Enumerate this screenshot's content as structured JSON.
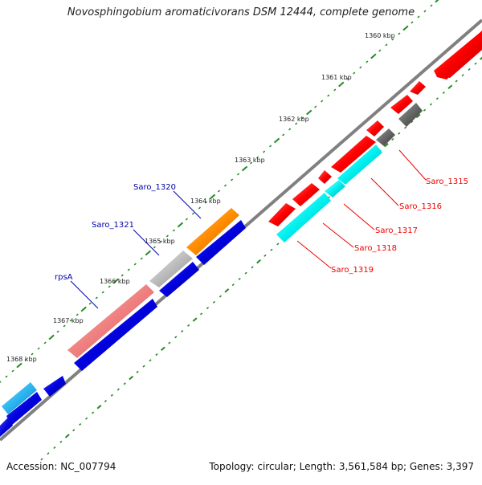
{
  "title": "Novosphingobium aromaticivorans DSM 12444, complete genome",
  "footer": {
    "accession_label": "Accession: NC_007794",
    "topology_label": "Topology: circular; Length: 3,561,584 bp; Genes: 3,397"
  },
  "ticks": [
    "1360 kbp",
    "1361 kbp",
    "1362 kbp",
    "1363 kbp",
    "1364 kbp",
    "1365 kbp",
    "1366 kbp",
    "1367 kbp",
    "1368 kbp"
  ],
  "gene_labels": {
    "red": [
      "Saro_1315",
      "Saro_1316",
      "Saro_1317",
      "Saro_1318",
      "Saro_1319"
    ],
    "blue": [
      "Saro_1320",
      "Saro_1321",
      "rpsA"
    ]
  },
  "colors": {
    "backbone": "#808080",
    "tick_dots": "#228b22",
    "red_gene": "#ff0000",
    "cyan_gene": "#00ffff",
    "blue_gene": "#0000dd",
    "orange_gene": "#ff8c00",
    "pink_gene": "#f08080",
    "gray_gene": "#bbbbbb",
    "darkgray_gene": "#666666",
    "skyblue_gene": "#2ab4f0",
    "label_red": "#ee0000",
    "label_blue": "#0000aa"
  }
}
